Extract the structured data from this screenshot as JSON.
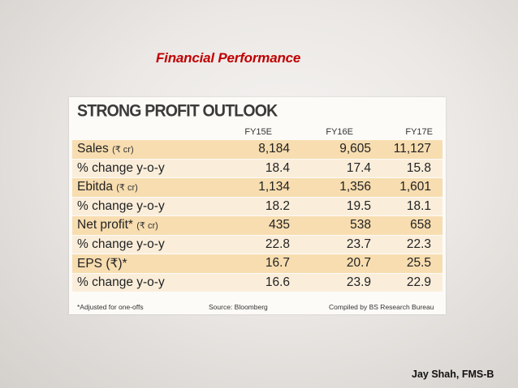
{
  "slide": {
    "title": "Financial Performance",
    "author": "Jay Shah, FMS-B"
  },
  "table": {
    "heading": "STRONG PROFIT OUTLOOK",
    "columns": [
      "FY15E",
      "FY16E",
      "FY17E"
    ],
    "rows": [
      {
        "label": "Sales",
        "unit": "(₹ cr)",
        "values": [
          "8,184",
          "9,605",
          "11,127"
        ]
      },
      {
        "label": "% change y-o-y",
        "unit": "",
        "values": [
          "18.4",
          "17.4",
          "15.8"
        ]
      },
      {
        "label": "Ebitda",
        "unit": "(₹ cr)",
        "values": [
          "1,134",
          "1,356",
          "1,601"
        ]
      },
      {
        "label": "% change y-o-y",
        "unit": "",
        "values": [
          "18.2",
          "19.5",
          "18.1"
        ]
      },
      {
        "label": "Net profit*",
        "unit": "(₹ cr)",
        "values": [
          "435",
          "538",
          "658"
        ]
      },
      {
        "label": "% change y-o-y",
        "unit": "",
        "values": [
          "22.8",
          "23.7",
          "22.3"
        ]
      },
      {
        "label": "EPS (₹)*",
        "unit": "",
        "values": [
          "16.7",
          "20.7",
          "25.5"
        ]
      },
      {
        "label": "% change y-o-y",
        "unit": "",
        "values": [
          "16.6",
          "23.9",
          "22.9"
        ]
      }
    ],
    "footnote": "*Adjusted for one-offs",
    "source": "Source: Bloomberg",
    "compiled": "Compiled by BS Research Bureau"
  }
}
